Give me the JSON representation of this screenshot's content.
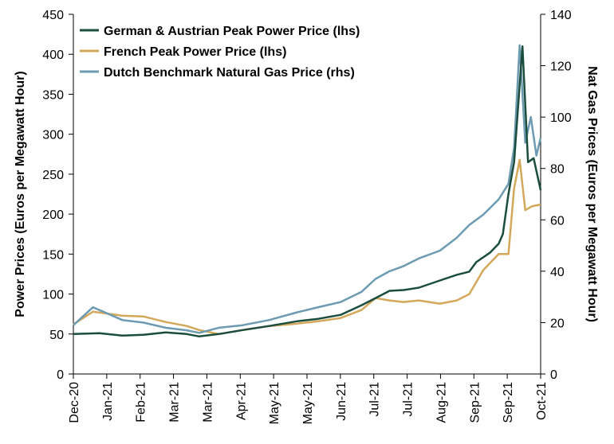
{
  "chart_data": {
    "type": "line",
    "title": "",
    "y_left": {
      "label": "Power Prices (Euros per Megawatt Hour)",
      "ylim": [
        0,
        450
      ],
      "ticks": [
        "0",
        "50",
        "100",
        "150",
        "200",
        "250",
        "300",
        "350",
        "400",
        "450"
      ]
    },
    "y_right": {
      "label": "Nat Gas Prices (Euros per Megawatt Hour)",
      "ylim": [
        0,
        140
      ],
      "ticks": [
        "0",
        "20",
        "40",
        "60",
        "80",
        "100",
        "120",
        "140"
      ]
    },
    "x_ticks": [
      "Dec-20",
      "Jan-21",
      "Feb-21",
      "Mar-21",
      "Mar-21",
      "Apr-21",
      "May-21",
      "May-21",
      "Jun-21",
      "Jul-21",
      "Jul-21",
      "Aug-21",
      "Sep-21",
      "Sep-21",
      "Oct-21"
    ],
    "legend": {
      "placement": "top-left",
      "entries": [
        "German & Austrian Peak Power Price (lhs)",
        "French Peak Power Price (lhs)",
        "Dutch Benchmark Natural Gas Price (rhs)"
      ]
    },
    "colors": {
      "german": "#1b4d3e",
      "french": "#d4a85a",
      "dutch": "#6c9bb2"
    },
    "grid": false,
    "series": [
      {
        "name": "German & Austrian Peak Power Price (lhs)",
        "axis": "left",
        "x": [
          "2020-12-01",
          "2020-12-20",
          "2021-01-05",
          "2021-01-20",
          "2021-02-05",
          "2021-02-20",
          "2021-03-01",
          "2021-03-15",
          "2021-04-01",
          "2021-04-20",
          "2021-05-10",
          "2021-05-25",
          "2021-06-10",
          "2021-06-25",
          "2021-07-05",
          "2021-07-15",
          "2021-07-25",
          "2021-08-05",
          "2021-08-20",
          "2021-09-01",
          "2021-09-10",
          "2021-09-15",
          "2021-09-25",
          "2021-10-01",
          "2021-10-04",
          "2021-10-08",
          "2021-10-12",
          "2021-10-18",
          "2021-10-22",
          "2021-10-26",
          "2021-10-31"
        ],
        "y": [
          50,
          51,
          48,
          49,
          52,
          50,
          47,
          50,
          55,
          60,
          66,
          69,
          74,
          86,
          95,
          104,
          105,
          108,
          117,
          124,
          128,
          140,
          152,
          163,
          175,
          225,
          265,
          410,
          265,
          270,
          230
        ]
      },
      {
        "name": "French Peak Power Price (lhs)",
        "axis": "left",
        "x": [
          "2020-12-01",
          "2020-12-15",
          "2021-01-05",
          "2021-01-20",
          "2021-02-05",
          "2021-02-20",
          "2021-03-01",
          "2021-03-15",
          "2021-04-01",
          "2021-04-20",
          "2021-05-10",
          "2021-05-25",
          "2021-06-10",
          "2021-06-25",
          "2021-07-05",
          "2021-07-15",
          "2021-07-25",
          "2021-08-05",
          "2021-08-20",
          "2021-09-01",
          "2021-09-10",
          "2021-09-20",
          "2021-10-01",
          "2021-10-08",
          "2021-10-12",
          "2021-10-16",
          "2021-10-20",
          "2021-10-25",
          "2021-10-31"
        ],
        "y": [
          62,
          78,
          73,
          72,
          65,
          60,
          55,
          50,
          55,
          60,
          63,
          66,
          70,
          80,
          95,
          92,
          90,
          92,
          88,
          92,
          100,
          130,
          150,
          150,
          232,
          268,
          205,
          210,
          212
        ]
      },
      {
        "name": "Dutch Benchmark Natural Gas Price (rhs)",
        "axis": "right",
        "x": [
          "2020-12-01",
          "2020-12-15",
          "2021-01-05",
          "2021-01-20",
          "2021-02-05",
          "2021-02-20",
          "2021-03-01",
          "2021-03-15",
          "2021-04-01",
          "2021-04-20",
          "2021-05-10",
          "2021-05-25",
          "2021-06-10",
          "2021-06-25",
          "2021-07-05",
          "2021-07-15",
          "2021-07-25",
          "2021-08-05",
          "2021-08-20",
          "2021-09-01",
          "2021-09-10",
          "2021-09-20",
          "2021-10-01",
          "2021-10-08",
          "2021-10-12",
          "2021-10-16",
          "2021-10-20",
          "2021-10-24",
          "2021-10-28",
          "2021-10-31"
        ],
        "y": [
          19,
          26,
          21,
          20,
          18,
          17,
          16,
          18,
          19,
          21,
          24,
          26,
          28,
          32,
          37,
          40,
          42,
          45,
          48,
          53,
          58,
          62,
          68,
          74,
          88,
          128,
          90,
          100,
          85,
          92
        ]
      }
    ]
  }
}
